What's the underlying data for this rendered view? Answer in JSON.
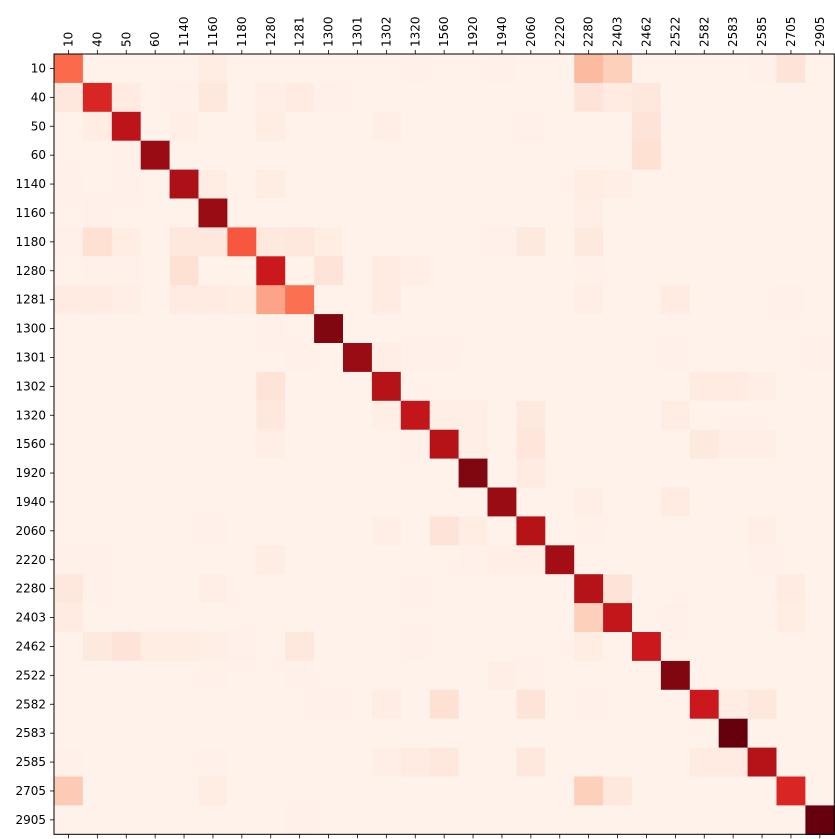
{
  "chart_data": {
    "type": "heatmap",
    "title": "",
    "xlabel": "",
    "ylabel": "",
    "colormap": "Reds",
    "value_range": [
      0,
      1
    ],
    "labels": [
      "10",
      "40",
      "50",
      "60",
      "1140",
      "1160",
      "1180",
      "1280",
      "1281",
      "1300",
      "1301",
      "1302",
      "1320",
      "1560",
      "1920",
      "1940",
      "2060",
      "2220",
      "2280",
      "2403",
      "2462",
      "2522",
      "2582",
      "2583",
      "2585",
      "2705",
      "2905"
    ],
    "values": [
      [
        0.5,
        0.02,
        0.02,
        0.02,
        0.02,
        0.05,
        0.02,
        0.02,
        0.02,
        0.02,
        0.02,
        0.02,
        0.03,
        0.02,
        0.02,
        0.03,
        0.02,
        0.02,
        0.25,
        0.18,
        0.02,
        0.02,
        0.02,
        0.02,
        0.03,
        0.1,
        0.02
      ],
      [
        0.08,
        0.7,
        0.06,
        0.02,
        0.03,
        0.08,
        0.02,
        0.04,
        0.06,
        0.03,
        0.02,
        0.02,
        0.02,
        0.02,
        0.02,
        0.02,
        0.02,
        0.02,
        0.1,
        0.06,
        0.08,
        0.02,
        0.02,
        0.02,
        0.02,
        0.02,
        0.02
      ],
      [
        0.02,
        0.05,
        0.8,
        0.02,
        0.04,
        0.02,
        0.02,
        0.05,
        0.02,
        0.02,
        0.02,
        0.04,
        0.02,
        0.02,
        0.02,
        0.02,
        0.03,
        0.02,
        0.02,
        0.02,
        0.1,
        0.02,
        0.02,
        0.02,
        0.02,
        0.02,
        0.02
      ],
      [
        0.02,
        0.02,
        0.03,
        0.9,
        0.02,
        0.02,
        0.02,
        0.02,
        0.02,
        0.02,
        0.02,
        0.02,
        0.02,
        0.02,
        0.02,
        0.02,
        0.02,
        0.02,
        0.02,
        0.02,
        0.12,
        0.02,
        0.02,
        0.02,
        0.02,
        0.02,
        0.02
      ],
      [
        0.03,
        0.02,
        0.03,
        0.02,
        0.85,
        0.05,
        0.02,
        0.05,
        0.02,
        0.02,
        0.02,
        0.02,
        0.02,
        0.02,
        0.02,
        0.02,
        0.02,
        0.02,
        0.05,
        0.04,
        0.02,
        0.02,
        0.02,
        0.02,
        0.02,
        0.02,
        0.02
      ],
      [
        0.02,
        0.03,
        0.02,
        0.02,
        0.02,
        0.9,
        0.02,
        0.02,
        0.02,
        0.02,
        0.02,
        0.02,
        0.02,
        0.02,
        0.02,
        0.02,
        0.02,
        0.02,
        0.04,
        0.02,
        0.02,
        0.02,
        0.02,
        0.02,
        0.02,
        0.02,
        0.02
      ],
      [
        0.03,
        0.12,
        0.05,
        0.02,
        0.08,
        0.08,
        0.55,
        0.07,
        0.08,
        0.05,
        0.02,
        0.02,
        0.02,
        0.02,
        0.02,
        0.03,
        0.07,
        0.02,
        0.07,
        0.02,
        0.02,
        0.02,
        0.02,
        0.02,
        0.02,
        0.02,
        0.02
      ],
      [
        0.02,
        0.03,
        0.03,
        0.02,
        0.12,
        0.02,
        0.02,
        0.75,
        0.02,
        0.1,
        0.02,
        0.06,
        0.04,
        0.02,
        0.02,
        0.02,
        0.02,
        0.02,
        0.03,
        0.02,
        0.02,
        0.02,
        0.02,
        0.02,
        0.02,
        0.02,
        0.02
      ],
      [
        0.06,
        0.06,
        0.04,
        0.02,
        0.06,
        0.06,
        0.05,
        0.32,
        0.48,
        0.02,
        0.02,
        0.06,
        0.02,
        0.02,
        0.02,
        0.02,
        0.02,
        0.02,
        0.04,
        0.02,
        0.02,
        0.06,
        0.02,
        0.02,
        0.02,
        0.03,
        0.02
      ],
      [
        0.02,
        0.02,
        0.02,
        0.02,
        0.02,
        0.02,
        0.02,
        0.03,
        0.02,
        0.95,
        0.02,
        0.02,
        0.02,
        0.02,
        0.02,
        0.02,
        0.02,
        0.02,
        0.02,
        0.02,
        0.02,
        0.02,
        0.02,
        0.02,
        0.02,
        0.02,
        0.02
      ],
      [
        0.02,
        0.02,
        0.02,
        0.02,
        0.02,
        0.02,
        0.02,
        0.02,
        0.03,
        0.02,
        0.9,
        0.04,
        0.03,
        0.03,
        0.02,
        0.02,
        0.02,
        0.02,
        0.02,
        0.02,
        0.02,
        0.03,
        0.02,
        0.02,
        0.02,
        0.02,
        0.03
      ],
      [
        0.02,
        0.02,
        0.02,
        0.02,
        0.02,
        0.02,
        0.02,
        0.1,
        0.02,
        0.02,
        0.02,
        0.82,
        0.02,
        0.02,
        0.02,
        0.02,
        0.02,
        0.02,
        0.02,
        0.02,
        0.02,
        0.02,
        0.06,
        0.06,
        0.04,
        0.02,
        0.02
      ],
      [
        0.02,
        0.02,
        0.02,
        0.02,
        0.02,
        0.02,
        0.02,
        0.08,
        0.02,
        0.02,
        0.02,
        0.04,
        0.78,
        0.04,
        0.04,
        0.02,
        0.07,
        0.02,
        0.02,
        0.02,
        0.02,
        0.05,
        0.02,
        0.02,
        0.02,
        0.02,
        0.02
      ],
      [
        0.02,
        0.02,
        0.02,
        0.02,
        0.02,
        0.02,
        0.02,
        0.04,
        0.02,
        0.02,
        0.02,
        0.02,
        0.03,
        0.82,
        0.04,
        0.02,
        0.09,
        0.02,
        0.02,
        0.02,
        0.02,
        0.02,
        0.07,
        0.04,
        0.04,
        0.02,
        0.02
      ],
      [
        0.02,
        0.02,
        0.02,
        0.02,
        0.02,
        0.02,
        0.02,
        0.02,
        0.02,
        0.02,
        0.02,
        0.02,
        0.02,
        0.02,
        0.95,
        0.02,
        0.06,
        0.02,
        0.02,
        0.02,
        0.02,
        0.02,
        0.02,
        0.02,
        0.02,
        0.02,
        0.02
      ],
      [
        0.02,
        0.02,
        0.02,
        0.02,
        0.02,
        0.02,
        0.02,
        0.02,
        0.02,
        0.02,
        0.02,
        0.02,
        0.02,
        0.02,
        0.02,
        0.9,
        0.02,
        0.02,
        0.04,
        0.02,
        0.02,
        0.06,
        0.02,
        0.02,
        0.02,
        0.02,
        0.02
      ],
      [
        0.02,
        0.02,
        0.02,
        0.02,
        0.02,
        0.03,
        0.02,
        0.02,
        0.02,
        0.02,
        0.02,
        0.04,
        0.02,
        0.1,
        0.05,
        0.02,
        0.82,
        0.02,
        0.03,
        0.02,
        0.02,
        0.02,
        0.02,
        0.02,
        0.04,
        0.02,
        0.02
      ],
      [
        0.03,
        0.03,
        0.02,
        0.02,
        0.02,
        0.02,
        0.02,
        0.05,
        0.02,
        0.02,
        0.02,
        0.02,
        0.02,
        0.02,
        0.03,
        0.04,
        0.04,
        0.88,
        0.02,
        0.02,
        0.02,
        0.02,
        0.02,
        0.02,
        0.03,
        0.02,
        0.02
      ],
      [
        0.08,
        0.03,
        0.02,
        0.02,
        0.02,
        0.04,
        0.02,
        0.02,
        0.02,
        0.02,
        0.02,
        0.02,
        0.03,
        0.02,
        0.02,
        0.02,
        0.02,
        0.02,
        0.82,
        0.1,
        0.02,
        0.02,
        0.02,
        0.02,
        0.02,
        0.06,
        0.02
      ],
      [
        0.06,
        0.02,
        0.02,
        0.02,
        0.02,
        0.02,
        0.02,
        0.02,
        0.02,
        0.02,
        0.02,
        0.02,
        0.02,
        0.02,
        0.02,
        0.02,
        0.02,
        0.02,
        0.18,
        0.78,
        0.02,
        0.03,
        0.02,
        0.02,
        0.02,
        0.05,
        0.02
      ],
      [
        0.02,
        0.07,
        0.1,
        0.05,
        0.05,
        0.04,
        0.03,
        0.02,
        0.08,
        0.02,
        0.02,
        0.02,
        0.03,
        0.02,
        0.02,
        0.02,
        0.02,
        0.02,
        0.05,
        0.02,
        0.75,
        0.02,
        0.02,
        0.02,
        0.02,
        0.02,
        0.02
      ],
      [
        0.02,
        0.02,
        0.02,
        0.02,
        0.02,
        0.03,
        0.02,
        0.02,
        0.03,
        0.02,
        0.02,
        0.02,
        0.02,
        0.02,
        0.02,
        0.04,
        0.03,
        0.02,
        0.02,
        0.02,
        0.02,
        0.95,
        0.02,
        0.02,
        0.02,
        0.02,
        0.02
      ],
      [
        0.02,
        0.02,
        0.02,
        0.02,
        0.02,
        0.02,
        0.02,
        0.02,
        0.02,
        0.03,
        0.02,
        0.05,
        0.02,
        0.12,
        0.02,
        0.02,
        0.1,
        0.02,
        0.03,
        0.02,
        0.02,
        0.02,
        0.75,
        0.05,
        0.08,
        0.02,
        0.02
      ],
      [
        0.02,
        0.02,
        0.02,
        0.02,
        0.02,
        0.02,
        0.02,
        0.02,
        0.02,
        0.02,
        0.02,
        0.02,
        0.02,
        0.02,
        0.02,
        0.02,
        0.02,
        0.02,
        0.02,
        0.02,
        0.02,
        0.02,
        0.02,
        1.0,
        0.02,
        0.02,
        0.02
      ],
      [
        0.03,
        0.02,
        0.02,
        0.02,
        0.02,
        0.03,
        0.02,
        0.02,
        0.02,
        0.02,
        0.02,
        0.04,
        0.06,
        0.08,
        0.02,
        0.02,
        0.08,
        0.02,
        0.02,
        0.02,
        0.02,
        0.02,
        0.06,
        0.06,
        0.82,
        0.02,
        0.02
      ],
      [
        0.2,
        0.02,
        0.02,
        0.02,
        0.02,
        0.05,
        0.02,
        0.02,
        0.02,
        0.02,
        0.02,
        0.02,
        0.02,
        0.02,
        0.02,
        0.02,
        0.02,
        0.02,
        0.18,
        0.08,
        0.02,
        0.02,
        0.02,
        0.02,
        0.02,
        0.7,
        0.02
      ],
      [
        0.02,
        0.02,
        0.02,
        0.02,
        0.02,
        0.02,
        0.02,
        0.02,
        0.03,
        0.02,
        0.02,
        0.02,
        0.02,
        0.02,
        0.02,
        0.02,
        0.02,
        0.02,
        0.02,
        0.02,
        0.02,
        0.02,
        0.02,
        0.02,
        0.02,
        0.02,
        1.0
      ]
    ],
    "grid": false,
    "legend": "none"
  }
}
